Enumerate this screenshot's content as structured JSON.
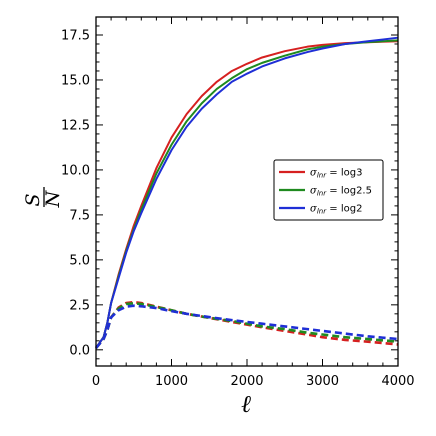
{
  "chart_data": {
    "type": "line",
    "xlabel": "ℓ",
    "ylabel_num": "S",
    "ylabel_den": "N",
    "xlim": [
      0,
      4000
    ],
    "ylim": [
      -0.9,
      18.5
    ],
    "x_major_ticks": [
      0,
      1000,
      2000,
      3000,
      4000
    ],
    "x_tick_labels": [
      "0",
      "1000",
      "2000",
      "3000",
      "4000"
    ],
    "y_major_ticks": [
      0.0,
      2.5,
      5.0,
      7.5,
      10.0,
      12.5,
      15.0,
      17.5
    ],
    "y_tick_labels": [
      "0.0",
      "2.5",
      "5.0",
      "7.5",
      "10.0",
      "12.5",
      "15.0",
      "17.5"
    ],
    "x_minor_step": 200,
    "y_minor_step": 0.5,
    "grid": false,
    "legend_position": "right-middle",
    "legend": [
      {
        "label_prefix": "σ",
        "label_sub": "lnr",
        "label_suffix": " = log3",
        "color": "#d62020"
      },
      {
        "label_prefix": "σ",
        "label_sub": "lnr",
        "label_suffix": " = log2.5",
        "color": "#1f8a1f"
      },
      {
        "label_prefix": "σ",
        "label_sub": "lnr",
        "label_suffix": " = log2",
        "color": "#1f2fd6"
      }
    ],
    "x": [
      0,
      100,
      150,
      200,
      300,
      400,
      500,
      600,
      800,
      1000,
      1200,
      1400,
      1600,
      1800,
      2000,
      2200,
      2500,
      2800,
      3000,
      3300,
      3600,
      4000
    ],
    "series": [
      {
        "color": "#d62020",
        "style": "solid",
        "values": [
          0.1,
          0.7,
          1.5,
          2.6,
          4.2,
          5.6,
          6.9,
          8.0,
          10.1,
          11.8,
          13.1,
          14.1,
          14.9,
          15.5,
          15.9,
          16.25,
          16.6,
          16.85,
          16.95,
          17.05,
          17.1,
          17.15
        ]
      },
      {
        "color": "#1f8a1f",
        "style": "solid",
        "values": [
          0.1,
          0.7,
          1.5,
          2.6,
          4.1,
          5.5,
          6.7,
          7.8,
          9.8,
          11.4,
          12.7,
          13.7,
          14.5,
          15.1,
          15.6,
          15.95,
          16.35,
          16.7,
          16.85,
          17.0,
          17.1,
          17.2
        ]
      },
      {
        "color": "#1f2fd6",
        "style": "solid",
        "values": [
          0.1,
          0.7,
          1.5,
          2.6,
          4.0,
          5.4,
          6.6,
          7.6,
          9.5,
          11.1,
          12.4,
          13.4,
          14.2,
          14.9,
          15.35,
          15.75,
          16.2,
          16.55,
          16.75,
          17.0,
          17.15,
          17.35
        ]
      },
      {
        "color": "#d62020",
        "style": "dashed",
        "values": [
          0.1,
          0.6,
          1.1,
          1.8,
          2.35,
          2.6,
          2.65,
          2.6,
          2.4,
          2.2,
          2.0,
          1.85,
          1.7,
          1.55,
          1.4,
          1.25,
          1.05,
          0.85,
          0.7,
          0.55,
          0.45,
          0.3
        ]
      },
      {
        "color": "#1f8a1f",
        "style": "dashed",
        "values": [
          0.1,
          0.6,
          1.1,
          1.8,
          2.3,
          2.55,
          2.58,
          2.55,
          2.38,
          2.2,
          2.0,
          1.85,
          1.72,
          1.6,
          1.45,
          1.3,
          1.15,
          0.95,
          0.85,
          0.7,
          0.6,
          0.45
        ]
      },
      {
        "color": "#1f2fd6",
        "style": "dashed",
        "values": [
          0.1,
          0.6,
          1.1,
          1.8,
          2.2,
          2.4,
          2.45,
          2.42,
          2.32,
          2.15,
          2.0,
          1.88,
          1.76,
          1.65,
          1.55,
          1.45,
          1.3,
          1.15,
          1.05,
          0.9,
          0.75,
          0.6
        ]
      }
    ]
  }
}
